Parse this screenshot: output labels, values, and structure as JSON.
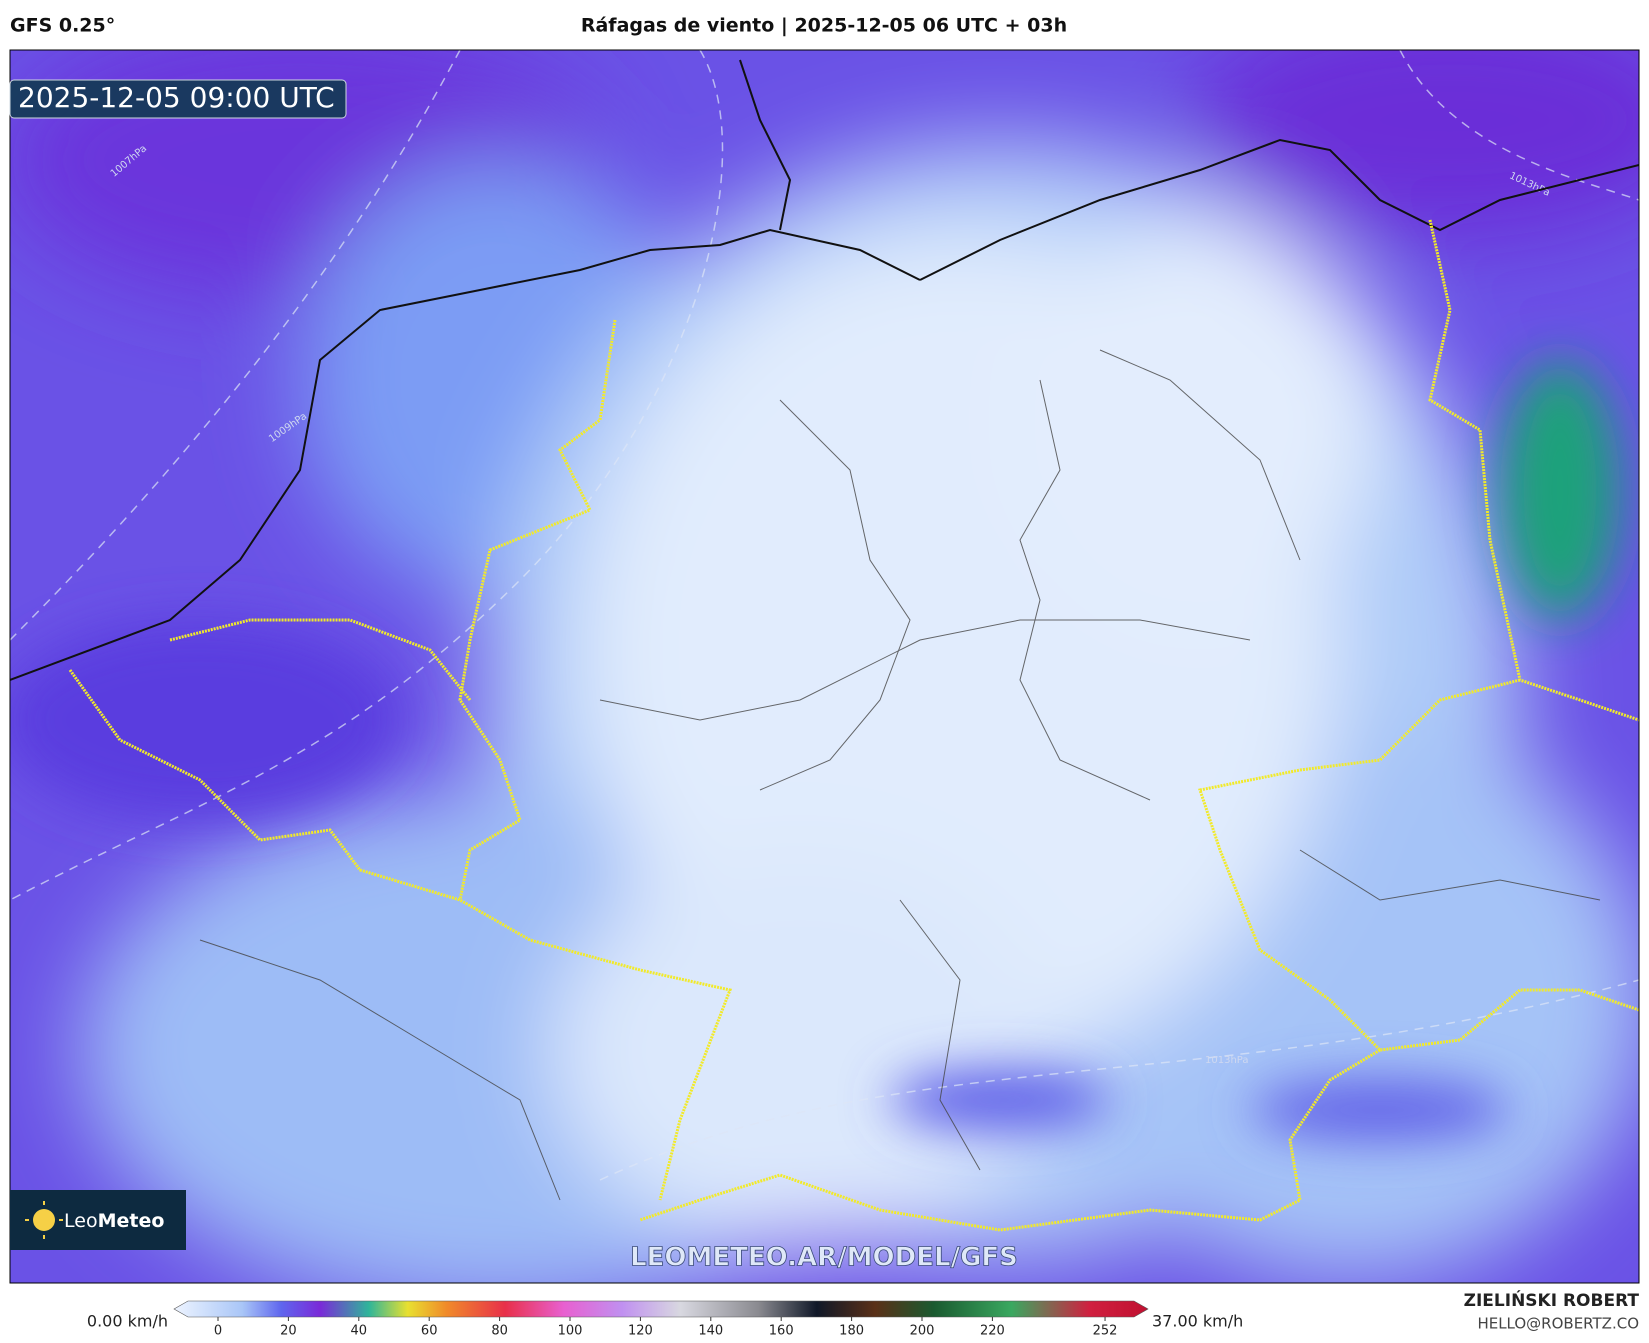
{
  "header": {
    "model": "GFS 0.25°",
    "title": "Ráfagas de viento | 2025-12-05 06 UTC + 03h"
  },
  "map": {
    "timestamp": "2025-12-05 09:00 UTC",
    "watermark": "LEOMETEO.AR/MODEL/GFS",
    "isobars": [
      "1007hPa",
      "1009hPa",
      "1013hPa",
      "1013hPa"
    ]
  },
  "logo": {
    "leo": "Leo",
    "meteo": "Meteo"
  },
  "colorbar": {
    "min_label": "0.00 km/h",
    "max_label": "37.00 km/h",
    "ticks": [
      0,
      20,
      40,
      60,
      80,
      100,
      120,
      140,
      160,
      180,
      200,
      220,
      252
    ]
  },
  "author": {
    "name": "ZIELIŃSKI ROBERT",
    "email": "HELLO@ROBERTZ.CO"
  }
}
